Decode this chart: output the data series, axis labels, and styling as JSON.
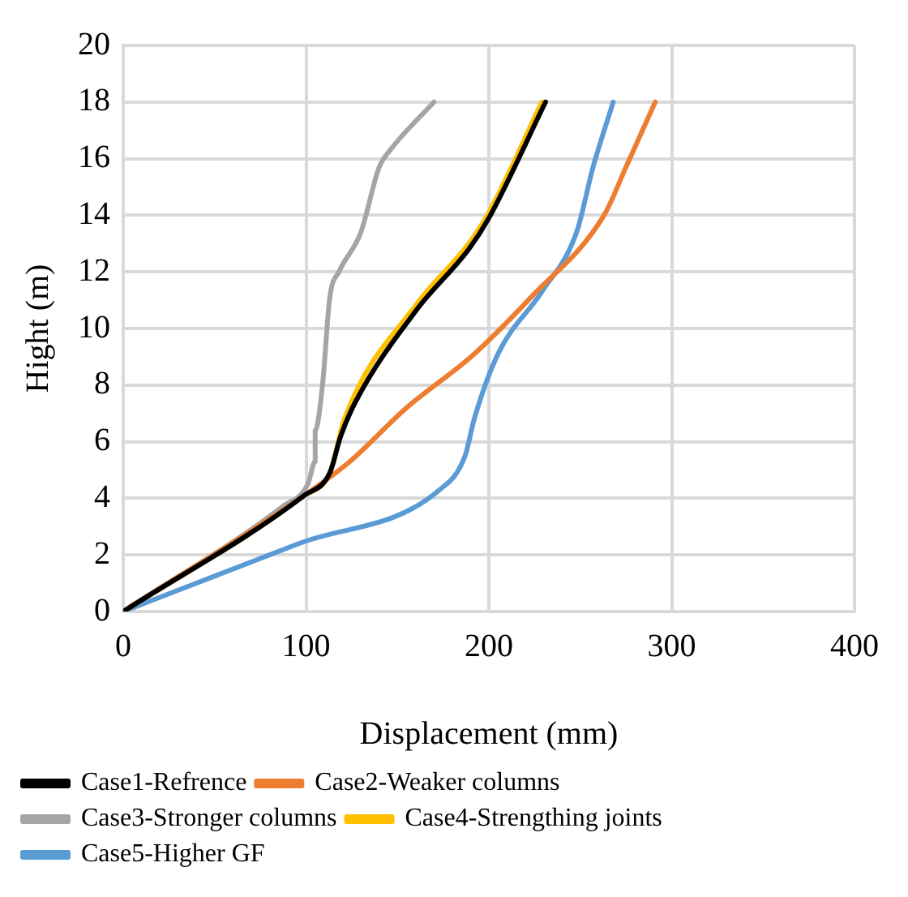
{
  "chart_data": {
    "type": "line",
    "xlabel": "Displacement (mm)",
    "ylabel": "Hight (m)",
    "xlim": [
      0,
      400
    ],
    "xticks": [
      0,
      100,
      200,
      300,
      400
    ],
    "ylim": [
      0,
      20
    ],
    "yticks": [
      0,
      2,
      4,
      6,
      8,
      10,
      12,
      14,
      16,
      18,
      20
    ],
    "grid": true,
    "legend": "bottom",
    "marker": "none",
    "line_style": "solid",
    "series": [
      {
        "name": "Case1-Refrence",
        "color": "#000000",
        "x": [
          0,
          99,
          113,
          119,
          127,
          161,
          189,
          200,
          231
        ],
        "values": [
          0,
          4.1,
          4.9,
          6.2,
          7.4,
          10.7,
          12.8,
          13.9,
          18
        ]
      },
      {
        "name": "Case2-Weaker columns",
        "color": "#ed7d31",
        "x": [
          0,
          99,
          124,
          155,
          192,
          223,
          263,
          275,
          291
        ],
        "values": [
          0,
          4.1,
          5.3,
          7.2,
          9.1,
          11.1,
          14,
          15.7,
          18
        ]
      },
      {
        "name": "Case3-Stronger columns",
        "color": "#a5a5a5",
        "x": [
          0,
          87,
          101,
          105,
          105,
          109,
          113,
          118,
          130,
          140,
          146,
          170
        ],
        "values": [
          0,
          3.7,
          4.5,
          5.3,
          6.4,
          8,
          11.1,
          12,
          13.4,
          15.7,
          16.3,
          18
        ]
      },
      {
        "name": "Case4-Strengthing joints",
        "color": "#ffc000",
        "x": [
          0,
          99,
          113,
          121,
          161,
          189,
          200,
          229
        ],
        "values": [
          0,
          4.1,
          4.9,
          6.8,
          10.9,
          13,
          14.1,
          18
        ]
      },
      {
        "name": "Case5-Higher GF",
        "color": "#5b9bd5",
        "x": [
          0,
          96,
          173,
          187,
          192,
          205,
          229,
          248,
          257,
          268
        ],
        "values": [
          0,
          2.4,
          4.3,
          5.5,
          6.8,
          9.1,
          11.3,
          13.4,
          15.7,
          18
        ]
      }
    ]
  }
}
